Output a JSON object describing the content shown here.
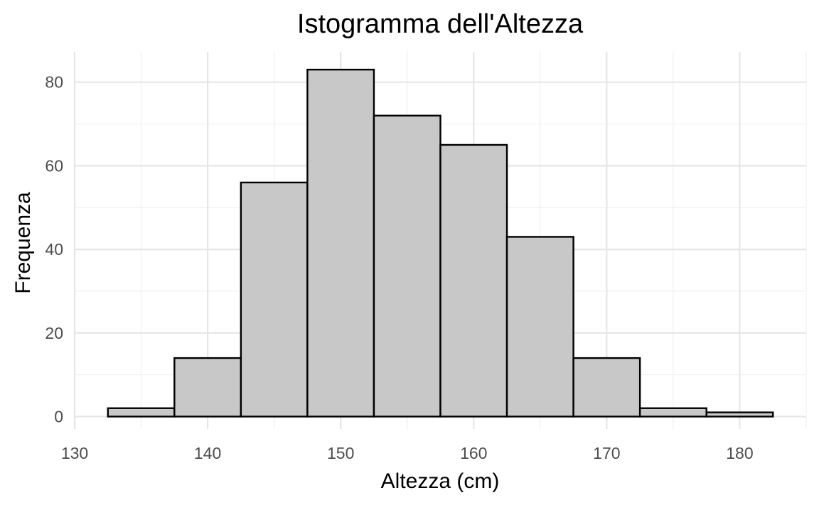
{
  "chart_data": {
    "type": "bar",
    "subtype": "histogram",
    "title": "Istogramma dell'Altezza",
    "xlabel": "Altezza (cm)",
    "ylabel": "Frequenza",
    "bin_width": 5,
    "bins": [
      {
        "start": 132.5,
        "end": 137.5,
        "count": 2
      },
      {
        "start": 137.5,
        "end": 142.5,
        "count": 14
      },
      {
        "start": 142.5,
        "end": 147.5,
        "count": 56
      },
      {
        "start": 147.5,
        "end": 152.5,
        "count": 83
      },
      {
        "start": 152.5,
        "end": 157.5,
        "count": 72
      },
      {
        "start": 157.5,
        "end": 162.5,
        "count": 65
      },
      {
        "start": 162.5,
        "end": 167.5,
        "count": 43
      },
      {
        "start": 167.5,
        "end": 172.5,
        "count": 14
      },
      {
        "start": 172.5,
        "end": 177.5,
        "count": 2
      },
      {
        "start": 177.5,
        "end": 182.5,
        "count": 1
      }
    ],
    "xlim": [
      130,
      185
    ],
    "ylim": [
      0,
      87
    ],
    "x_ticks": [
      130,
      140,
      150,
      160,
      170,
      180
    ],
    "y_ticks": [
      0,
      20,
      40,
      60,
      80
    ],
    "grid": true,
    "legend": "none",
    "colors": {
      "bar_fill": "#c8c8c8",
      "bar_outline": "#000000",
      "grid": "#e6e6e6",
      "tick_text": "#4d4d4d"
    }
  }
}
